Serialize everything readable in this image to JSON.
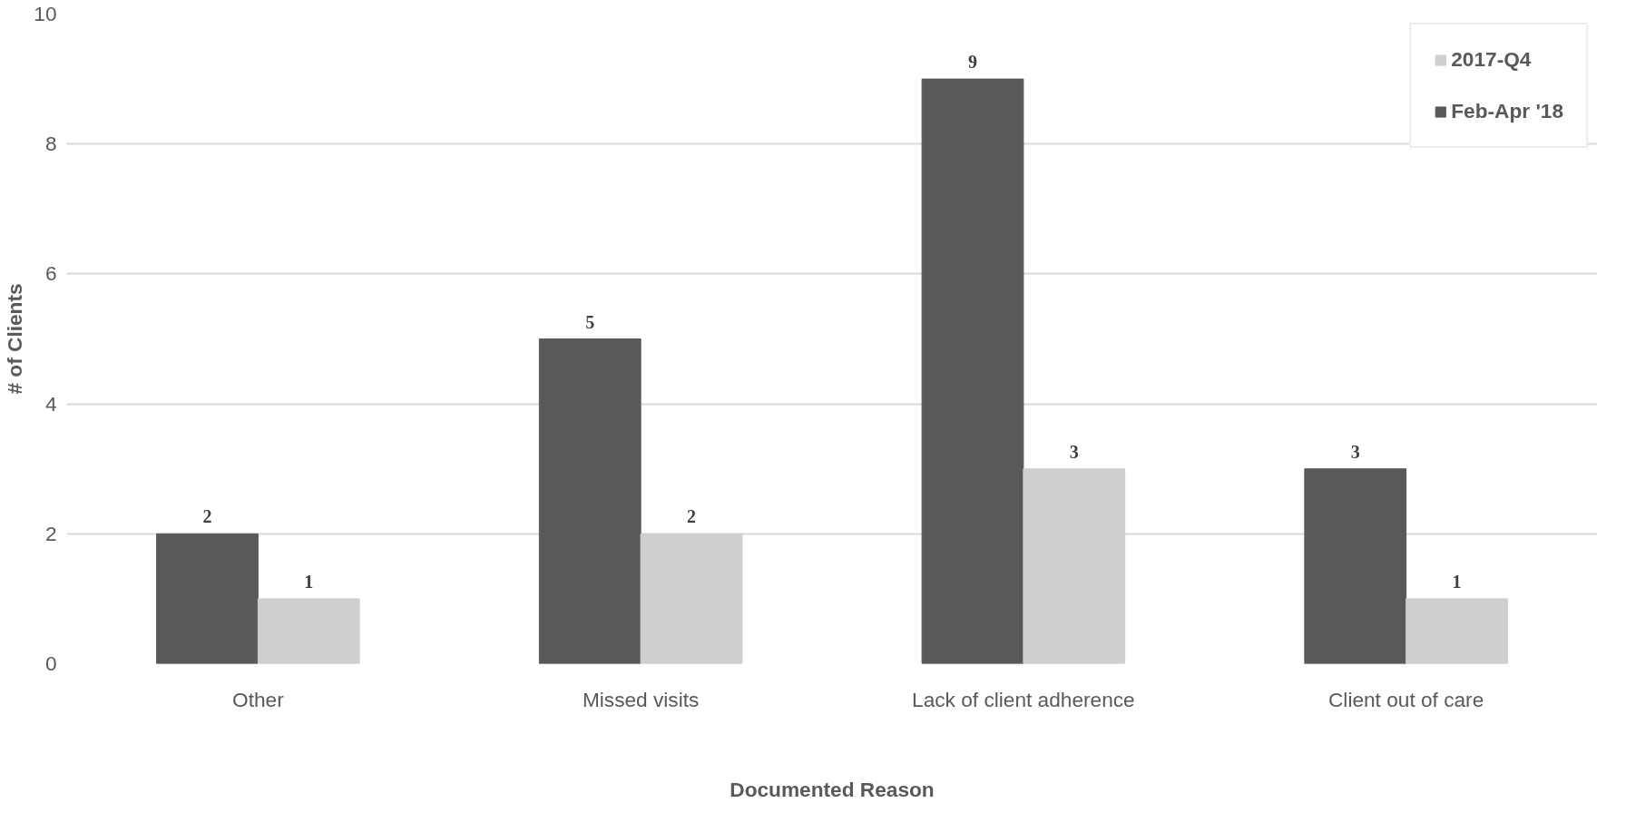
{
  "chart_data": {
    "type": "bar",
    "xlabel": "Documented Reason",
    "ylabel": "# of Clients",
    "categories": [
      "Other",
      "Missed visits",
      "Lack of client adherence",
      "Client out of care"
    ],
    "series": [
      {
        "name": "Feb-Apr '18",
        "color": "#595959",
        "values": [
          2,
          5,
          9,
          3
        ]
      },
      {
        "name": "2017-Q4",
        "color": "#d0cece",
        "values": [
          1,
          2,
          3,
          1
        ]
      }
    ],
    "ylim": [
      0,
      10
    ],
    "yticks": [
      0,
      2,
      4,
      6,
      8,
      10
    ],
    "grid": "y",
    "legend": "top right",
    "data_labels": true
  }
}
